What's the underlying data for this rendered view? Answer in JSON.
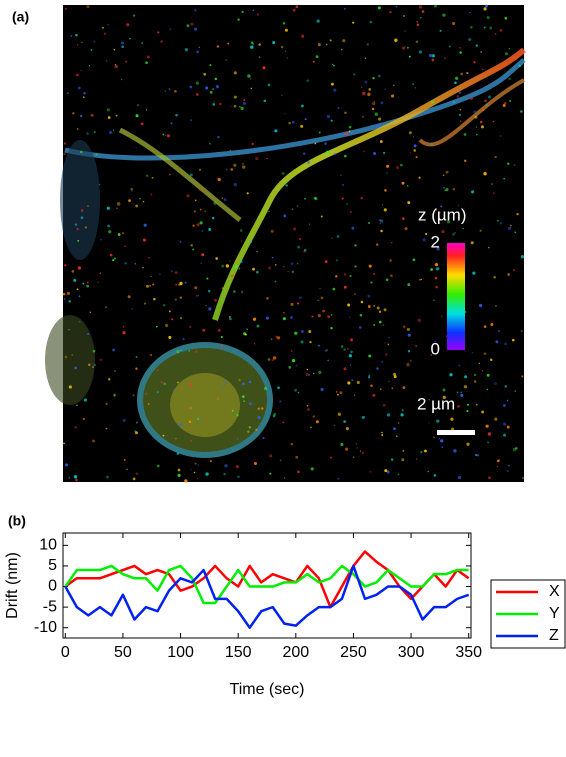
{
  "panel_a": {
    "label": "(a)",
    "colorbar": {
      "title": "z (µm)",
      "lim": [
        0,
        2
      ],
      "ticks": [
        0,
        2
      ]
    },
    "scale_bar_label": "2 µm"
  },
  "chart_data": {
    "type": "line",
    "panel_label": "(b)",
    "x_label": "Time (sec)",
    "y_label": "Drift (nm)",
    "x": [
      0,
      10,
      20,
      30,
      40,
      50,
      60,
      70,
      80,
      90,
      100,
      110,
      120,
      130,
      140,
      150,
      160,
      170,
      180,
      190,
      200,
      210,
      220,
      230,
      240,
      250,
      260,
      270,
      280,
      290,
      300,
      310,
      320,
      330,
      340,
      350
    ],
    "series": [
      {
        "name": "X",
        "color": "#ff0000",
        "values": [
          0,
          2,
          2,
          2,
          3,
          4,
          5,
          3,
          4,
          3,
          -1,
          0,
          2,
          5,
          2,
          0,
          5,
          1,
          3,
          2,
          1,
          5,
          2,
          -5,
          0,
          5,
          8.5,
          6,
          4,
          0,
          -3,
          0,
          3,
          0,
          4,
          2
        ]
      },
      {
        "name": "Y",
        "color": "#00ee00",
        "values": [
          0,
          4,
          4,
          4,
          5,
          3,
          2,
          2,
          -1,
          4,
          5,
          2,
          -4,
          -4,
          0,
          4,
          0,
          0,
          0,
          1,
          1,
          3,
          1,
          2,
          5,
          3,
          0,
          1,
          4,
          2,
          0,
          0,
          3,
          3,
          4,
          4
        ]
      },
      {
        "name": "Z",
        "color": "#0022ee",
        "values": [
          0,
          -5,
          -7,
          -5,
          -7,
          -2,
          -8,
          -5,
          -6,
          -1,
          2,
          1,
          4,
          -3,
          -3,
          -6,
          -10,
          -6,
          -5,
          -9,
          -9.5,
          -7,
          -5,
          -5,
          -3,
          5,
          -3,
          -2,
          0,
          0,
          -2,
          -8,
          -5,
          -5,
          -3,
          -2
        ]
      }
    ],
    "xlim": [
      -2,
      352
    ],
    "ylim": [
      -12.5,
      13
    ],
    "xticks": [
      0,
      50,
      100,
      150,
      200,
      250,
      300,
      350
    ],
    "yticks": [
      -10,
      -5,
      0,
      5,
      10
    ],
    "legend": "right"
  }
}
